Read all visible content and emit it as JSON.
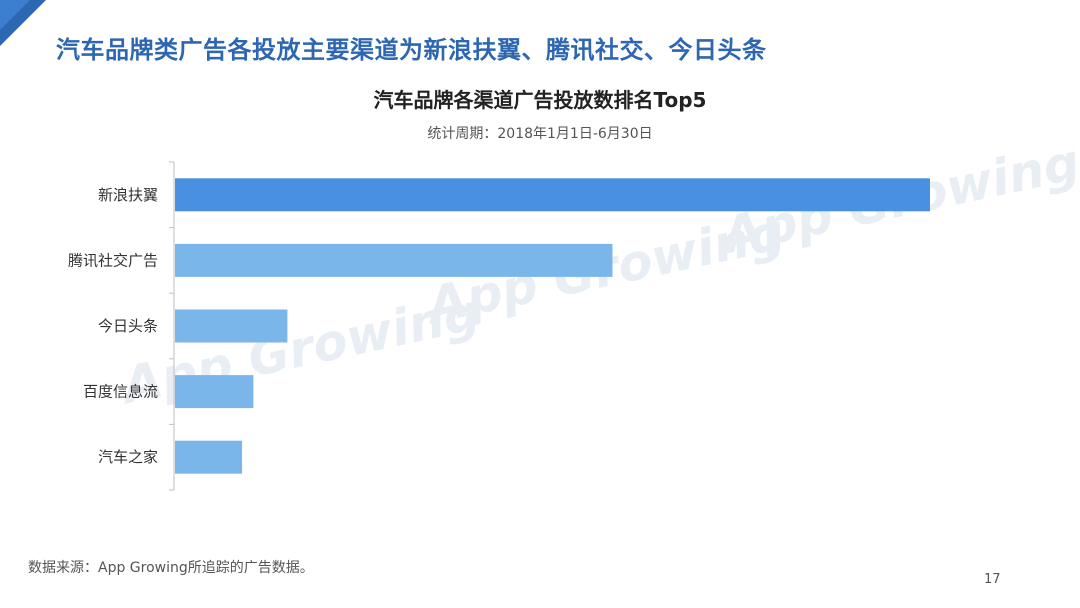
{
  "headline": "汽车品牌类广告各投放主要渠道为新浪扶翼、腾讯社交、今日头条",
  "watermark": "App Growing",
  "source_note": "数据来源：App Growing所追踪的广告数据。",
  "page_number": "17",
  "colors": {
    "headline": "#2e67b1",
    "bar_primary": "#4a90e2",
    "bar_secondary": "#7bb6ea",
    "axis": "#bfbfbf"
  },
  "chart_data": {
    "type": "bar",
    "orientation": "horizontal",
    "title": "汽车品牌各渠道广告投放数排名Top5",
    "subtitle": "统计周期：2018年1月1日-6月30日",
    "categories": [
      "新浪扶翼",
      "腾讯社交广告",
      "今日头条",
      "百度信息流",
      "汽车之家"
    ],
    "values": [
      100,
      58,
      15,
      10.5,
      9
    ],
    "xlim": [
      0,
      100
    ],
    "xlabel": "",
    "ylabel": "",
    "grid": false,
    "legend": "none",
    "highlight_index": 0
  }
}
